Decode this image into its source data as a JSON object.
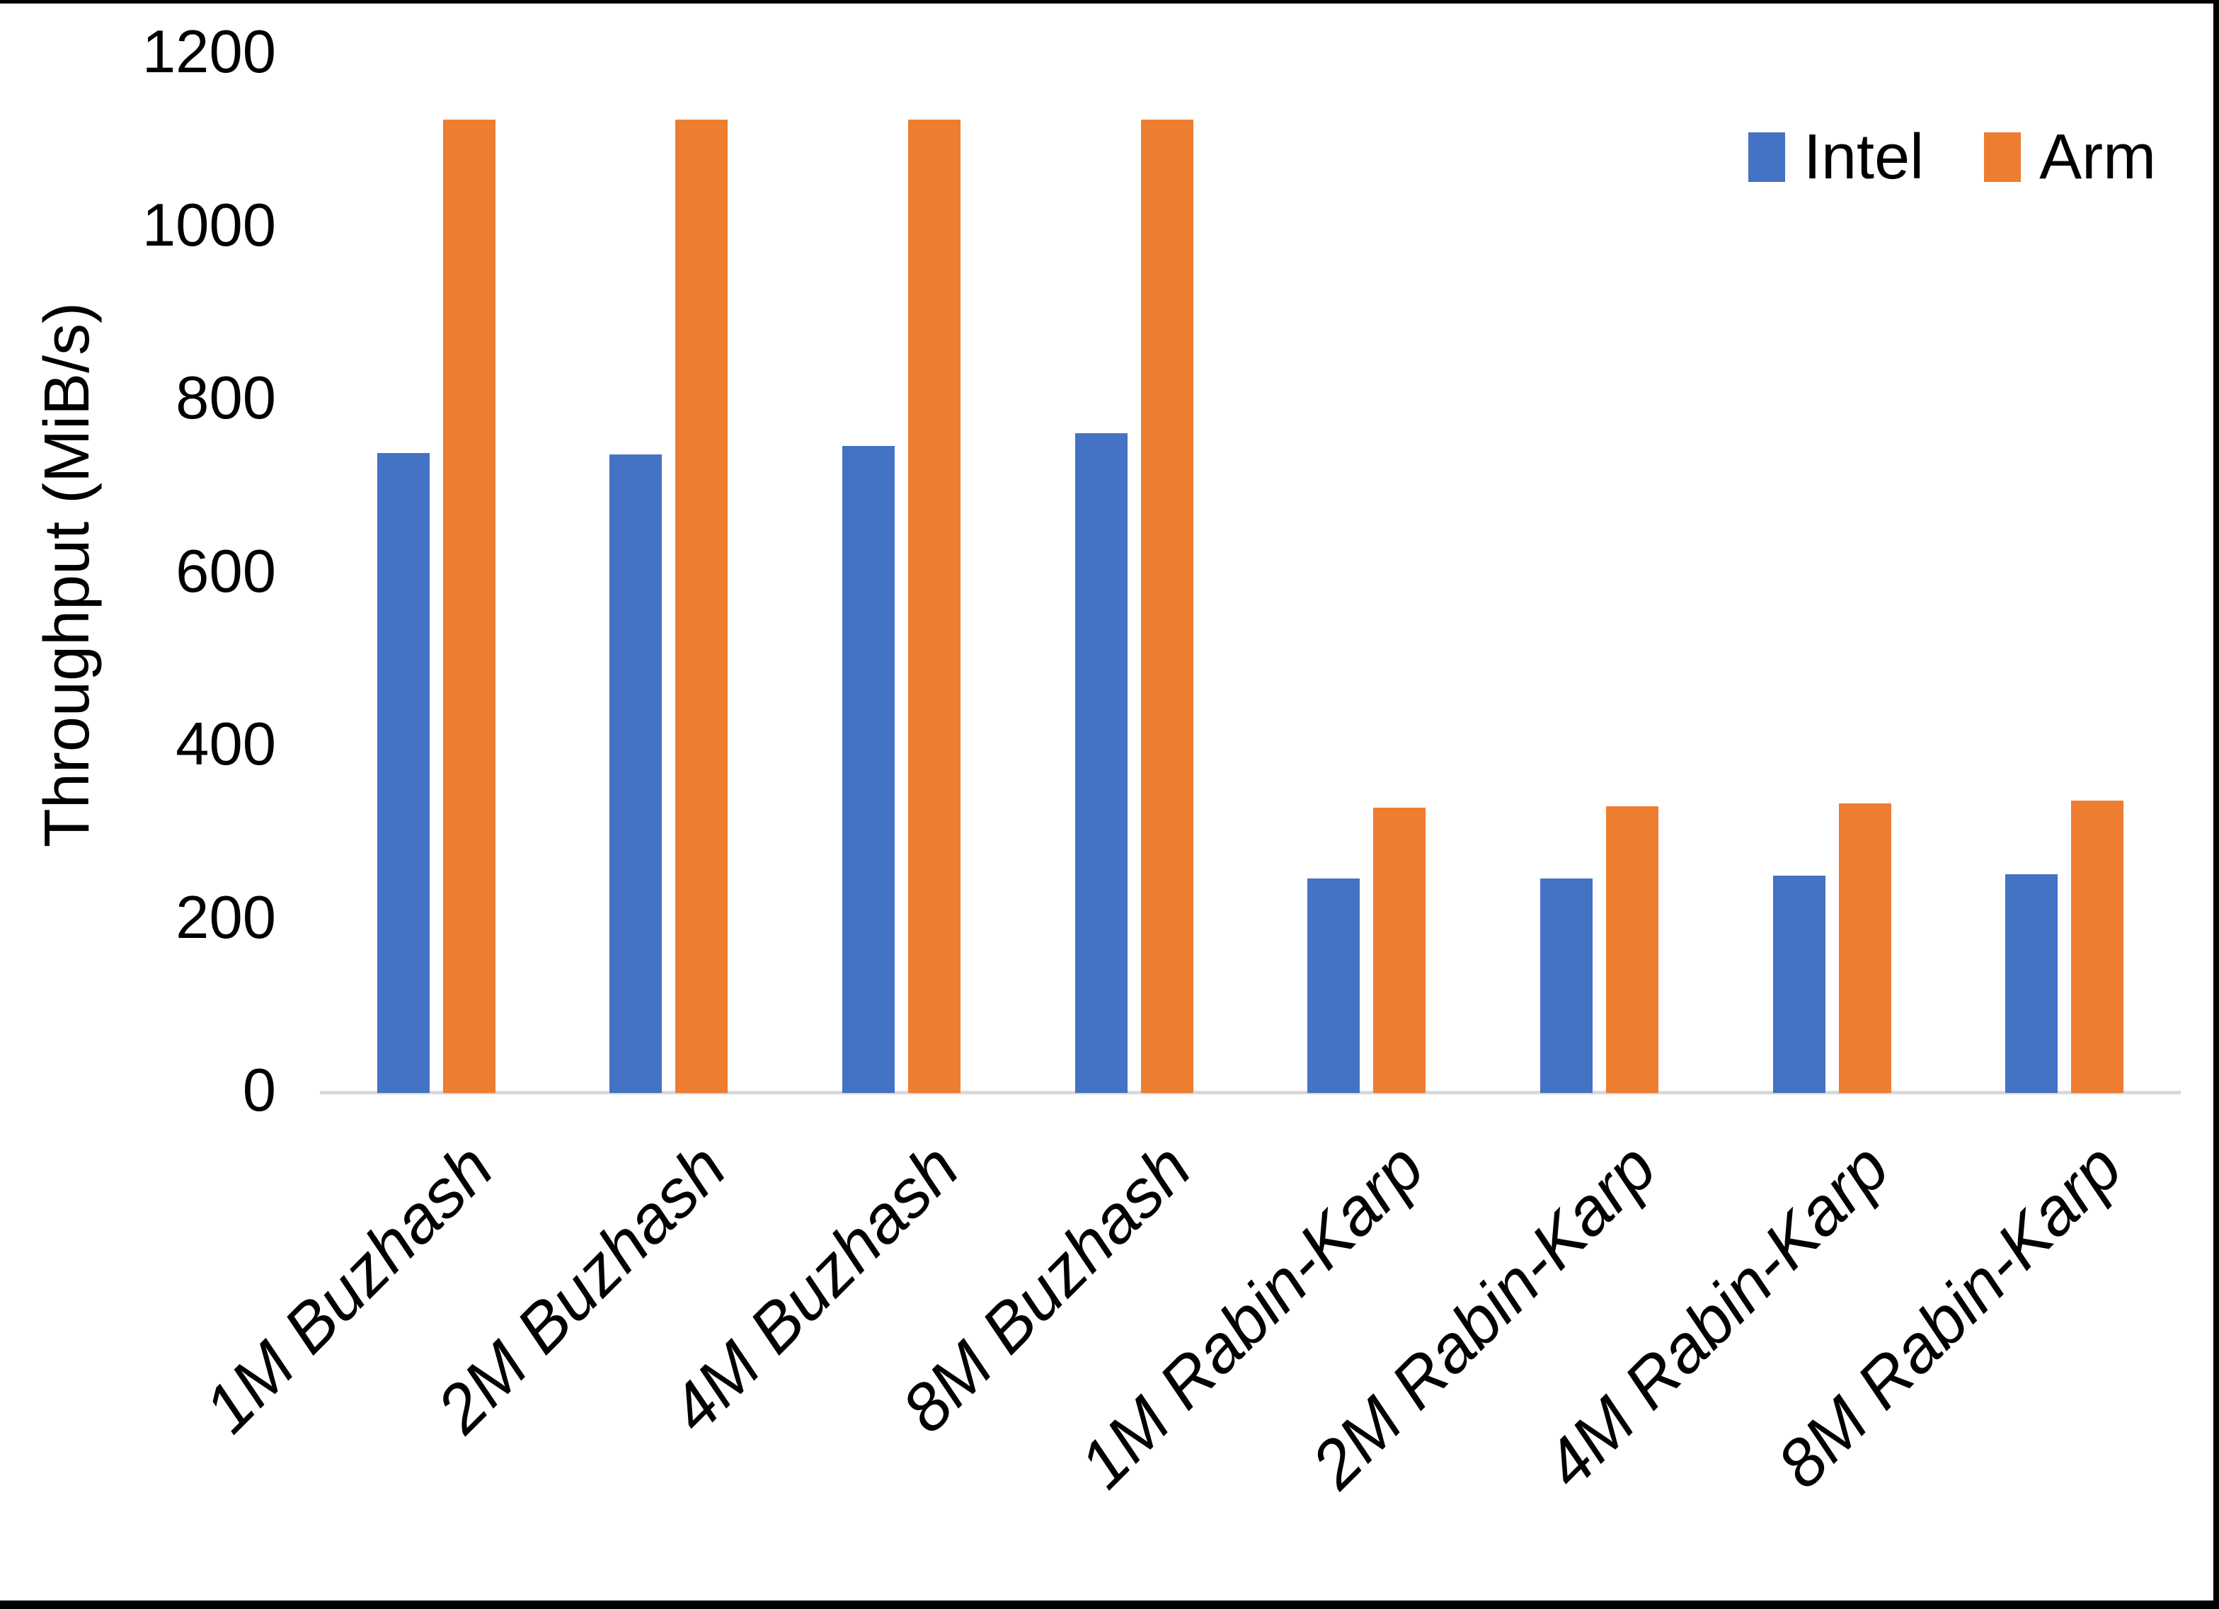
{
  "chart_data": {
    "type": "bar",
    "title": "",
    "ylabel": "Throughput (MiB/s)",
    "xlabel": "",
    "categories": [
      "1M Buzhash",
      "2M Buzhash",
      "4M Buzhash",
      "8M Buzhash",
      "1M Rabin-Karp",
      "2M Rabin-Karp",
      "4M Rabin-Karp",
      "8M Rabin-Karp"
    ],
    "series": [
      {
        "name": "Intel",
        "color": "#4472C4",
        "values": [
          737,
          735,
          745,
          760,
          245,
          245,
          249,
          250
        ]
      },
      {
        "name": "Arm",
        "color": "#ED7D31",
        "values": [
          1122,
          1122,
          1122,
          1122,
          327,
          329,
          332,
          335
        ]
      }
    ],
    "ylim": [
      0,
      1200
    ],
    "yticks": [
      0,
      200,
      400,
      600,
      800,
      1000,
      1200
    ],
    "grid": false,
    "legend_position": "top-right",
    "colors": {
      "axis_line": "#D9D9D9",
      "text": "#000000",
      "background": "#FFFFFF",
      "frame_border": "#000000"
    }
  }
}
